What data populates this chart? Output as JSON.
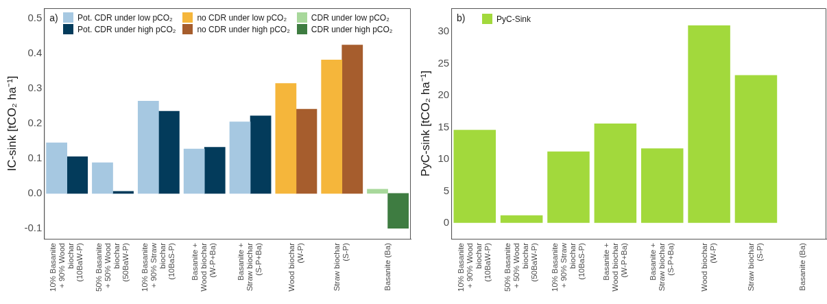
{
  "chart_data": [
    {
      "type": "bar",
      "ylabel": "IC-sink [tCO₂ ha⁻¹]",
      "annotations": [
        "a)"
      ],
      "categories": [
        "10% Basanite\n+ 90% Wood\nbiochar\n(10BaW-P)",
        "50% Basanite\n+ 50% Wood\nbiochar\n(50BaW-P)",
        "10% Basanite\n+ 90% Straw\nbiochar\n(10BaS-P)",
        "Basanite +\nWood biochar\n(W-P+Ba)",
        "Basanite +\nStraw biochar\n(S-P+Ba)",
        "Wood biochar\n(W-P)",
        "Straw biochar\n(S-P)",
        "Basanite (Ba)"
      ],
      "series": [
        {
          "name": "Pot. CDR under low pCO₂",
          "color": "#a6c8e1",
          "values": [
            0.145,
            0.088,
            0.264,
            0.127,
            0.205,
            null,
            null,
            null
          ]
        },
        {
          "name": "Pot. CDR under high pCO₂",
          "color": "#033b5b",
          "values": [
            0.105,
            0.006,
            0.235,
            0.132,
            0.222,
            null,
            null,
            null
          ]
        },
        {
          "name": "no CDR under low pCO₂",
          "color": "#f5b63b",
          "values": [
            null,
            null,
            null,
            null,
            null,
            0.315,
            0.382,
            null
          ]
        },
        {
          "name": "no CDR under high pCO₂",
          "color": "#a65d2d",
          "values": [
            null,
            null,
            null,
            null,
            null,
            0.241,
            0.425,
            null
          ]
        },
        {
          "name": "CDR under low pCO₂",
          "color": "#a8d89b",
          "values": [
            null,
            null,
            null,
            null,
            null,
            null,
            null,
            0.012
          ]
        },
        {
          "name": "CDR under high pCO₂",
          "color": "#3e7c41",
          "values": [
            null,
            null,
            null,
            null,
            null,
            null,
            null,
            -0.1
          ]
        }
      ],
      "ylim": [
        -0.13,
        0.53
      ],
      "yticks": [
        {
          "value": -0.1,
          "label": "-0.1"
        },
        {
          "value": 0,
          "label": "0.0"
        },
        {
          "value": 0.1,
          "label": "0.1"
        },
        {
          "value": 0.2,
          "label": "0.2"
        },
        {
          "value": 0.3,
          "label": "0.3"
        },
        {
          "value": 0.4,
          "label": "0.4"
        },
        {
          "value": 0.5,
          "label": "0.5"
        }
      ],
      "grid": false,
      "legend": "top"
    },
    {
      "type": "bar",
      "ylabel": "PyC-sink [tCO₂ ha⁻¹]",
      "annotations": [
        "b)"
      ],
      "categories": [
        "10% Basanite\n+ 90% Wood\nbiochar\n(10BaW-P)",
        "50% Basanite\n+ 50% Wood\nbiochar\n(50BaW-P)",
        "10% Basanite\n+ 90% Straw\nbiochar\n(10BaS-P)",
        "Basanite +\nWood biochar\n(W-P+Ba)",
        "Basanite +\nStraw biochar\n(S-P+Ba)",
        "Wood biochar\n(W-P)",
        "Straw biochar\n(S-P)",
        "Basanite (Ba)"
      ],
      "series": [
        {
          "name": "PyC-Sink",
          "color": "#a2d93c",
          "values": [
            14.6,
            1.2,
            11.2,
            15.6,
            11.7,
            31.0,
            23.2,
            null
          ]
        }
      ],
      "ylim": [
        -2.5,
        33.7
      ],
      "yticks": [
        0,
        5,
        10,
        15,
        20,
        25,
        30
      ],
      "grid": false,
      "legend": "top left"
    }
  ]
}
